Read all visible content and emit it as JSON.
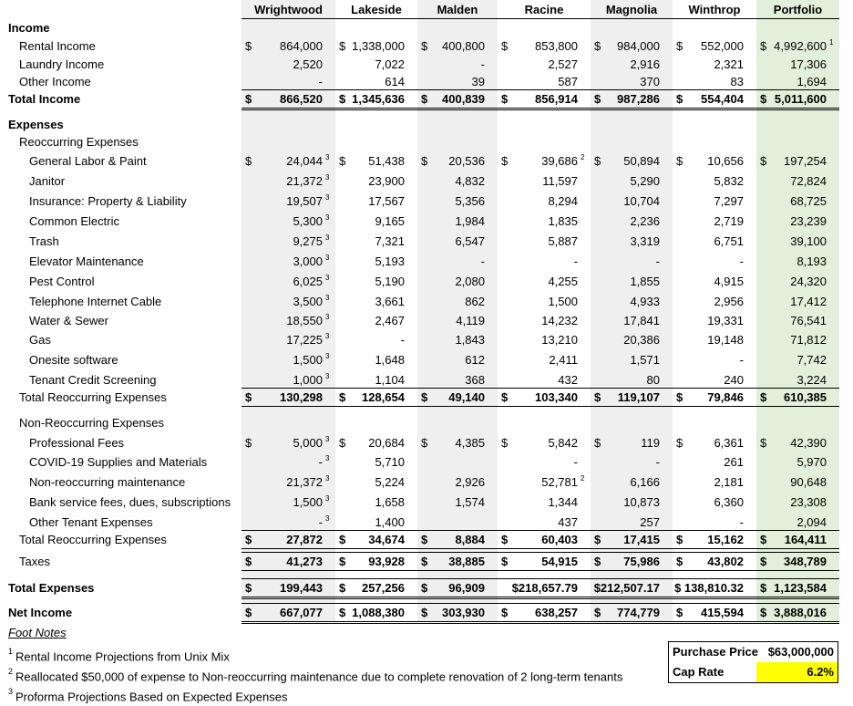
{
  "columns": [
    "Wrightwood",
    "Lakeside",
    "Malden",
    "Racine",
    "Magnolia",
    "Winthrop",
    "Portfolio"
  ],
  "rows": [
    {
      "type": "section",
      "label": "Income",
      "bold": true
    },
    {
      "type": "data",
      "label": "Rental Income",
      "indent": 2,
      "cur": true,
      "vals": [
        "864,000",
        "1,338,000",
        "400,800",
        "853,800",
        "984,000",
        "552,000",
        "4,992,600"
      ],
      "sups": [
        "",
        "",
        "",
        "",
        "",
        "",
        "1"
      ]
    },
    {
      "type": "data",
      "label": "Laundry Income",
      "indent": 2,
      "vals": [
        "2,520",
        "7,022",
        "-",
        "2,527",
        "2,916",
        "2,321",
        "17,306"
      ]
    },
    {
      "type": "data",
      "label": "Other Income",
      "indent": 2,
      "vals": [
        "-",
        "614",
        "39",
        "587",
        "370",
        "83",
        "1,694"
      ]
    },
    {
      "type": "total",
      "label": "Total Income",
      "bold": true,
      "cur": true,
      "vals": [
        "866,520",
        "1,345,636",
        "400,839",
        "856,914",
        "987,286",
        "554,404",
        "5,011,600"
      ]
    },
    {
      "type": "section",
      "label": "Expenses",
      "bold": true
    },
    {
      "type": "section",
      "label": "Reoccurring Expenses",
      "indent": 2
    },
    {
      "type": "data",
      "label": "General Labor & Paint",
      "indent": 3,
      "cur": true,
      "vals": [
        "24,044",
        "51,438",
        "20,536",
        "39,686",
        "50,894",
        "10,656",
        "197,254"
      ],
      "sups": [
        "3",
        "",
        "",
        "2",
        "",
        "",
        ""
      ]
    },
    {
      "type": "data",
      "label": "Janitor",
      "indent": 3,
      "vals": [
        "21,372",
        "23,900",
        "4,832",
        "11,597",
        "5,290",
        "5,832",
        "72,824"
      ],
      "sups": [
        "3",
        "",
        "",
        "",
        "",
        "",
        ""
      ]
    },
    {
      "type": "data",
      "label": "Insurance: Property & Liability",
      "indent": 3,
      "vals": [
        "19,507",
        "17,567",
        "5,356",
        "8,294",
        "10,704",
        "7,297",
        "68,725"
      ],
      "sups": [
        "3",
        "",
        "",
        "",
        "",
        "",
        ""
      ]
    },
    {
      "type": "data",
      "label": "Common Electric",
      "indent": 3,
      "vals": [
        "5,300",
        "9,165",
        "1,984",
        "1,835",
        "2,236",
        "2,719",
        "23,239"
      ],
      "sups": [
        "3",
        "",
        "",
        "",
        "",
        "",
        ""
      ]
    },
    {
      "type": "data",
      "label": "Trash",
      "indent": 3,
      "vals": [
        "9,275",
        "7,321",
        "6,547",
        "5,887",
        "3,319",
        "6,751",
        "39,100"
      ],
      "sups": [
        "3",
        "",
        "",
        "",
        "",
        "",
        ""
      ]
    },
    {
      "type": "data",
      "label": "Elevator Maintenance",
      "indent": 3,
      "vals": [
        "3,000",
        "5,193",
        "-",
        "-",
        "-",
        "-",
        "8,193"
      ],
      "sups": [
        "3",
        "",
        "",
        "",
        "",
        "",
        ""
      ]
    },
    {
      "type": "data",
      "label": "Pest Control",
      "indent": 3,
      "vals": [
        "6,025",
        "5,190",
        "2,080",
        "4,255",
        "1,855",
        "4,915",
        "24,320"
      ],
      "sups": [
        "3",
        "",
        "",
        "",
        "",
        "",
        ""
      ]
    },
    {
      "type": "data",
      "label": "Telephone Internet Cable",
      "indent": 3,
      "vals": [
        "3,500",
        "3,661",
        "862",
        "1,500",
        "4,933",
        "2,956",
        "17,412"
      ],
      "sups": [
        "3",
        "",
        "",
        "",
        "",
        "",
        ""
      ]
    },
    {
      "type": "data",
      "label": "Water & Sewer",
      "indent": 3,
      "vals": [
        "18,550",
        "2,467",
        "4,119",
        "14,232",
        "17,841",
        "19,331",
        "76,541"
      ],
      "sups": [
        "3",
        "",
        "",
        "",
        "",
        "",
        ""
      ]
    },
    {
      "type": "data",
      "label": "Gas",
      "indent": 3,
      "vals": [
        "17,225",
        "-",
        "1,843",
        "13,210",
        "20,386",
        "19,148",
        "71,812"
      ],
      "sups": [
        "3",
        "",
        "",
        "",
        "",
        "",
        ""
      ]
    },
    {
      "type": "data",
      "label": "Onesite software",
      "indent": 3,
      "vals": [
        "1,500",
        "1,648",
        "612",
        "2,411",
        "1,571",
        "-",
        "7,742"
      ],
      "sups": [
        "3",
        "",
        "",
        "",
        "",
        "",
        ""
      ]
    },
    {
      "type": "data",
      "label": "Tenant Credit Screening",
      "indent": 3,
      "vals": [
        "1,000",
        "1,104",
        "368",
        "432",
        "80",
        "240",
        "3,224"
      ],
      "sups": [
        "3",
        "",
        "",
        "",
        "",
        "",
        ""
      ]
    },
    {
      "type": "total",
      "label": "Total Reoccurring Expenses",
      "indent": 2,
      "bold": true,
      "labelBold": false,
      "cur": true,
      "vals": [
        "130,298",
        "128,654",
        "49,140",
        "103,340",
        "119,107",
        "79,846",
        "610,385"
      ]
    },
    {
      "type": "section",
      "label": "Non-Reoccurring Expenses",
      "indent": 2
    },
    {
      "type": "data",
      "label": "Professional Fees",
      "indent": 3,
      "cur": true,
      "vals": [
        "5,000",
        "20,684",
        "4,385",
        "5,842",
        "119",
        "6,361",
        "42,390"
      ],
      "sups": [
        "3",
        "",
        "",
        "",
        "",
        "",
        ""
      ]
    },
    {
      "type": "data",
      "label": "COVID-19 Supplies and Materials",
      "indent": 3,
      "vals": [
        "-",
        "5,710",
        "",
        "-",
        "-",
        "261",
        "5,970"
      ],
      "sups": [
        "3",
        "",
        "",
        "",
        "",
        "",
        ""
      ]
    },
    {
      "type": "data",
      "label": "Non-reoccurring maintenance",
      "indent": 3,
      "vals": [
        "21,372",
        "5,224",
        "2,926",
        "52,781",
        "6,166",
        "2,181",
        "90,648"
      ],
      "sups": [
        "3",
        "",
        "",
        "2",
        "",
        "",
        ""
      ]
    },
    {
      "type": "data",
      "label": "Bank service fees, dues, subscriptions",
      "indent": 3,
      "vals": [
        "1,500",
        "1,658",
        "1,574",
        "1,344",
        "10,873",
        "6,360",
        "23,308"
      ],
      "sups": [
        "3",
        "",
        "",
        "",
        "",
        "",
        ""
      ]
    },
    {
      "type": "data",
      "label": "Other Tenant Expenses",
      "indent": 3,
      "vals": [
        "-",
        "1,400",
        "",
        "437",
        "257",
        "-",
        "2,094"
      ],
      "sups": [
        "3",
        "",
        "",
        "",
        "",
        "",
        ""
      ]
    },
    {
      "type": "total",
      "label": "Total Reoccurring Expenses",
      "indent": 2,
      "bold": true,
      "labelBold": false,
      "cur": true,
      "vals": [
        "27,872",
        "34,674",
        "8,884",
        "60,403",
        "17,415",
        "15,162",
        "164,411"
      ]
    },
    {
      "type": "total",
      "label": "Taxes",
      "indent": 2,
      "bold": true,
      "labelBold": false,
      "cur": true,
      "vals": [
        "41,273",
        "93,928",
        "38,885",
        "54,915",
        "75,986",
        "43,802",
        "348,789"
      ]
    },
    {
      "type": "total",
      "label": "Total Expenses",
      "bold": true,
      "cur": true,
      "vals": [
        "199,443",
        "257,256",
        "96,909",
        "$218,657.79",
        "$212,507.17",
        "$ 138,810.32",
        "1,123,584"
      ]
    },
    {
      "type": "total",
      "label": "Net Income",
      "bold": true,
      "cur": true,
      "vals": [
        "667,077",
        "1,088,380",
        "303,930",
        "638,257",
        "774,779",
        "415,594",
        "3,888,016"
      ]
    }
  ],
  "footnotes": {
    "title": "Foot Notes",
    "items": [
      {
        "num": "1",
        "text": "Rental Income Projections from Unix Mix"
      },
      {
        "num": "2",
        "text": "Reallocated $50,000 of expense to Non-reoccurring maintenance due to complete renovation of 2 long-term tenants"
      },
      {
        "num": "3",
        "text": "Proforma Projections Based on Expected Expenses"
      }
    ]
  },
  "summary": {
    "purchase_price_label": "Purchase Price",
    "purchase_price_value": "$63,000,000",
    "cap_rate_label": "Cap Rate",
    "cap_rate_value": "6.2%"
  },
  "colors": {
    "gray_band": "#efefef",
    "portfolio_band": "#e2efda",
    "cap_rate_highlight": "#ffff00"
  }
}
